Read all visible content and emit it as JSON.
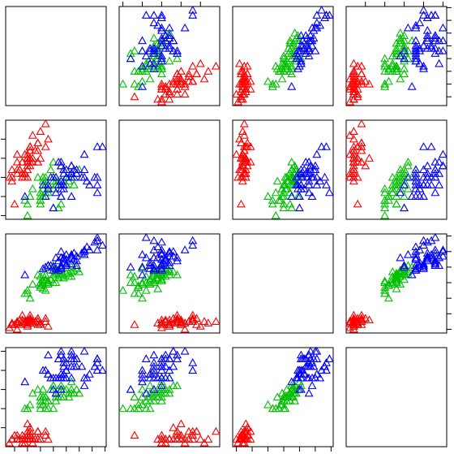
{
  "chart_data": {
    "type": "splom",
    "variables": [
      {
        "lim": [
          4.156,
          8.044
        ],
        "ticks": [
          4.5,
          5,
          5.5,
          6,
          6.5,
          7,
          7.5,
          8
        ]
      },
      {
        "lim": [
          1.904,
          4.496
        ],
        "ticks": [
          2,
          2.5,
          3,
          3.5,
          4
        ]
      },
      {
        "lim": [
          0.764,
          7.136
        ],
        "ticks": [
          1,
          2,
          3,
          4,
          5,
          6,
          7
        ]
      },
      {
        "lim": [
          0.004,
          2.596
        ],
        "ticks": [
          0.5,
          1,
          1.5,
          2,
          2.5
        ]
      }
    ],
    "series": [
      {
        "color": "#ff0000",
        "values": [
          [
            5.1,
            3.5,
            1.4,
            0.2
          ],
          [
            4.9,
            3.0,
            1.4,
            0.2
          ],
          [
            4.7,
            3.2,
            1.3,
            0.2
          ],
          [
            4.6,
            3.1,
            1.5,
            0.2
          ],
          [
            5.0,
            3.6,
            1.4,
            0.2
          ],
          [
            5.4,
            3.9,
            1.7,
            0.4
          ],
          [
            4.6,
            3.4,
            1.4,
            0.3
          ],
          [
            5.0,
            3.4,
            1.5,
            0.2
          ],
          [
            4.4,
            2.9,
            1.4,
            0.2
          ],
          [
            4.9,
            3.1,
            1.5,
            0.1
          ],
          [
            5.4,
            3.7,
            1.5,
            0.2
          ],
          [
            4.8,
            3.4,
            1.6,
            0.2
          ],
          [
            4.8,
            3.0,
            1.4,
            0.1
          ],
          [
            4.3,
            3.0,
            1.1,
            0.1
          ],
          [
            5.8,
            4.0,
            1.2,
            0.2
          ],
          [
            5.7,
            4.4,
            1.5,
            0.4
          ],
          [
            5.4,
            3.9,
            1.3,
            0.4
          ],
          [
            5.1,
            3.5,
            1.4,
            0.3
          ],
          [
            5.7,
            3.8,
            1.7,
            0.3
          ],
          [
            5.1,
            3.8,
            1.5,
            0.3
          ],
          [
            5.4,
            3.4,
            1.7,
            0.2
          ],
          [
            5.1,
            3.7,
            1.5,
            0.4
          ],
          [
            4.6,
            3.6,
            1.0,
            0.2
          ],
          [
            5.1,
            3.3,
            1.7,
            0.5
          ],
          [
            4.8,
            3.4,
            1.9,
            0.2
          ],
          [
            5.0,
            3.0,
            1.6,
            0.2
          ],
          [
            5.0,
            3.4,
            1.6,
            0.4
          ],
          [
            5.2,
            3.5,
            1.5,
            0.2
          ],
          [
            5.2,
            3.4,
            1.4,
            0.2
          ],
          [
            4.7,
            3.2,
            1.6,
            0.2
          ],
          [
            4.8,
            3.1,
            1.6,
            0.2
          ],
          [
            5.4,
            3.4,
            1.5,
            0.4
          ],
          [
            5.2,
            4.1,
            1.5,
            0.1
          ],
          [
            5.5,
            4.2,
            1.4,
            0.2
          ],
          [
            4.9,
            3.1,
            1.5,
            0.2
          ],
          [
            5.0,
            3.2,
            1.2,
            0.2
          ],
          [
            5.5,
            3.5,
            1.3,
            0.2
          ],
          [
            4.9,
            3.6,
            1.4,
            0.1
          ],
          [
            4.4,
            3.0,
            1.3,
            0.2
          ],
          [
            5.1,
            3.4,
            1.5,
            0.2
          ],
          [
            5.0,
            3.5,
            1.3,
            0.3
          ],
          [
            4.5,
            2.3,
            1.3,
            0.3
          ],
          [
            4.4,
            3.2,
            1.3,
            0.2
          ],
          [
            5.0,
            3.5,
            1.6,
            0.6
          ],
          [
            5.1,
            3.8,
            1.9,
            0.4
          ],
          [
            4.8,
            3.0,
            1.4,
            0.3
          ],
          [
            5.1,
            3.8,
            1.6,
            0.2
          ],
          [
            4.6,
            3.2,
            1.4,
            0.2
          ],
          [
            5.3,
            3.7,
            1.5,
            0.2
          ],
          [
            5.0,
            3.3,
            1.4,
            0.2
          ]
        ]
      },
      {
        "color": "#00c000",
        "values": [
          [
            7.0,
            3.2,
            4.7,
            1.4
          ],
          [
            6.4,
            3.2,
            4.5,
            1.5
          ],
          [
            6.9,
            3.1,
            4.9,
            1.5
          ],
          [
            5.5,
            2.3,
            4.0,
            1.3
          ],
          [
            6.5,
            2.8,
            4.6,
            1.5
          ],
          [
            5.7,
            2.8,
            4.5,
            1.3
          ],
          [
            6.3,
            3.3,
            4.7,
            1.6
          ],
          [
            4.9,
            2.4,
            3.3,
            1.0
          ],
          [
            6.6,
            2.9,
            4.6,
            1.3
          ],
          [
            5.2,
            2.7,
            3.9,
            1.4
          ],
          [
            5.0,
            2.0,
            3.5,
            1.0
          ],
          [
            5.9,
            3.0,
            4.2,
            1.5
          ],
          [
            6.0,
            2.2,
            4.0,
            1.0
          ],
          [
            6.1,
            2.9,
            4.7,
            1.4
          ],
          [
            5.6,
            2.9,
            3.6,
            1.3
          ],
          [
            6.7,
            3.1,
            4.4,
            1.4
          ],
          [
            5.6,
            3.0,
            4.5,
            1.5
          ],
          [
            5.8,
            2.7,
            4.1,
            1.0
          ],
          [
            6.2,
            2.2,
            4.5,
            1.5
          ],
          [
            5.6,
            2.5,
            3.9,
            1.1
          ],
          [
            5.9,
            3.2,
            4.8,
            1.8
          ],
          [
            6.1,
            2.8,
            4.0,
            1.3
          ],
          [
            6.3,
            2.5,
            4.9,
            1.5
          ],
          [
            6.1,
            2.8,
            4.7,
            1.2
          ],
          [
            6.4,
            2.9,
            4.3,
            1.3
          ],
          [
            6.6,
            3.0,
            4.4,
            1.4
          ],
          [
            6.8,
            2.8,
            4.8,
            1.4
          ],
          [
            6.7,
            3.0,
            5.0,
            1.7
          ],
          [
            6.0,
            2.9,
            4.5,
            1.5
          ],
          [
            5.7,
            2.6,
            3.5,
            1.0
          ],
          [
            5.5,
            2.4,
            3.8,
            1.1
          ],
          [
            5.5,
            2.4,
            3.7,
            1.0
          ],
          [
            5.8,
            2.7,
            3.9,
            1.2
          ],
          [
            6.0,
            2.7,
            5.1,
            1.6
          ],
          [
            5.4,
            3.0,
            4.5,
            1.5
          ],
          [
            6.0,
            3.4,
            4.5,
            1.6
          ],
          [
            6.7,
            3.1,
            4.7,
            1.5
          ],
          [
            6.3,
            2.3,
            4.4,
            1.3
          ],
          [
            5.6,
            3.0,
            4.1,
            1.3
          ],
          [
            5.5,
            2.5,
            4.0,
            1.3
          ],
          [
            5.5,
            2.6,
            4.4,
            1.2
          ],
          [
            6.1,
            3.0,
            4.6,
            1.4
          ],
          [
            5.8,
            2.6,
            4.0,
            1.2
          ],
          [
            5.0,
            2.3,
            3.3,
            1.0
          ],
          [
            5.6,
            2.7,
            4.2,
            1.3
          ],
          [
            5.7,
            3.0,
            4.2,
            1.2
          ],
          [
            5.7,
            2.9,
            4.2,
            1.3
          ],
          [
            6.2,
            2.9,
            4.3,
            1.3
          ],
          [
            5.1,
            2.5,
            3.0,
            1.1
          ],
          [
            5.7,
            2.8,
            4.1,
            1.3
          ]
        ]
      },
      {
        "color": "#0000ff",
        "values": [
          [
            6.3,
            3.3,
            6.0,
            2.5
          ],
          [
            5.8,
            2.7,
            5.1,
            1.9
          ],
          [
            7.1,
            3.0,
            5.9,
            2.1
          ],
          [
            6.3,
            2.9,
            5.6,
            1.8
          ],
          [
            6.5,
            3.0,
            5.8,
            2.2
          ],
          [
            7.6,
            3.0,
            6.6,
            2.1
          ],
          [
            4.9,
            2.5,
            4.5,
            1.7
          ],
          [
            7.3,
            2.9,
            6.3,
            1.8
          ],
          [
            6.7,
            2.5,
            5.8,
            1.8
          ],
          [
            7.2,
            3.6,
            6.1,
            2.5
          ],
          [
            6.5,
            3.2,
            5.1,
            2.0
          ],
          [
            6.4,
            2.7,
            5.3,
            1.9
          ],
          [
            6.8,
            3.0,
            5.5,
            2.1
          ],
          [
            5.7,
            2.5,
            5.0,
            2.0
          ],
          [
            5.8,
            2.8,
            5.1,
            2.4
          ],
          [
            6.4,
            3.2,
            5.3,
            2.3
          ],
          [
            6.5,
            3.0,
            5.5,
            1.8
          ],
          [
            7.7,
            3.8,
            6.7,
            2.2
          ],
          [
            7.7,
            2.6,
            6.9,
            2.3
          ],
          [
            6.0,
            2.2,
            5.0,
            1.5
          ],
          [
            6.9,
            3.2,
            5.7,
            2.3
          ],
          [
            5.6,
            2.8,
            4.9,
            2.0
          ],
          [
            7.7,
            2.8,
            6.7,
            2.0
          ],
          [
            6.3,
            2.7,
            4.9,
            1.8
          ],
          [
            6.7,
            3.3,
            5.7,
            2.1
          ],
          [
            7.2,
            3.2,
            6.0,
            1.8
          ],
          [
            6.2,
            2.8,
            4.8,
            1.8
          ],
          [
            6.1,
            3.0,
            4.9,
            1.8
          ],
          [
            6.4,
            2.8,
            5.6,
            2.1
          ],
          [
            7.2,
            3.0,
            5.8,
            1.6
          ],
          [
            7.4,
            2.8,
            6.1,
            1.9
          ],
          [
            7.9,
            3.8,
            6.4,
            2.0
          ],
          [
            6.4,
            2.8,
            5.6,
            2.2
          ],
          [
            6.3,
            2.8,
            5.1,
            1.5
          ],
          [
            6.1,
            2.6,
            5.6,
            1.4
          ],
          [
            7.7,
            3.0,
            6.1,
            2.3
          ],
          [
            6.3,
            3.4,
            5.6,
            2.4
          ],
          [
            6.4,
            3.1,
            5.5,
            1.8
          ],
          [
            6.0,
            3.0,
            4.8,
            1.8
          ],
          [
            6.9,
            3.1,
            5.4,
            2.1
          ],
          [
            6.7,
            3.1,
            5.6,
            2.4
          ],
          [
            6.9,
            3.1,
            5.1,
            2.3
          ],
          [
            5.8,
            2.7,
            5.1,
            1.9
          ],
          [
            6.8,
            3.2,
            5.9,
            2.3
          ],
          [
            6.7,
            3.3,
            5.7,
            2.5
          ],
          [
            6.7,
            3.0,
            5.2,
            2.3
          ],
          [
            6.3,
            2.5,
            5.0,
            1.9
          ],
          [
            6.5,
            3.0,
            5.2,
            2.0
          ],
          [
            6.2,
            3.4,
            5.4,
            2.3
          ],
          [
            5.9,
            3.0,
            5.1,
            1.8
          ]
        ]
      }
    ]
  }
}
